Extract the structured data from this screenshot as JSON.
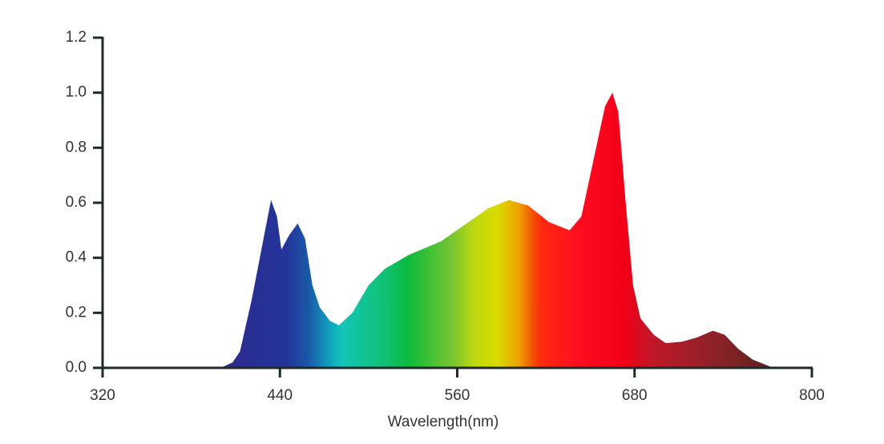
{
  "chart_data": {
    "type": "area",
    "xlabel": "Wavelength(nm)",
    "x": [
      400,
      408,
      413,
      421,
      430,
      434,
      438,
      441,
      446,
      452,
      457,
      462,
      467,
      474,
      480,
      489,
      500,
      511,
      527,
      549,
      565,
      581,
      595,
      608,
      622,
      636,
      644,
      652,
      660,
      665,
      669,
      674,
      679,
      684,
      693,
      701,
      712,
      722,
      733,
      741,
      750,
      760,
      774
    ],
    "values": [
      0,
      0.02,
      0.06,
      0.25,
      0.5,
      0.61,
      0.55,
      0.43,
      0.48,
      0.525,
      0.47,
      0.3,
      0.22,
      0.17,
      0.155,
      0.2,
      0.3,
      0.36,
      0.41,
      0.46,
      0.52,
      0.58,
      0.61,
      0.59,
      0.53,
      0.5,
      0.55,
      0.75,
      0.95,
      1.0,
      0.93,
      0.6,
      0.3,
      0.18,
      0.12,
      0.09,
      0.095,
      0.11,
      0.135,
      0.12,
      0.07,
      0.03,
      0
    ],
    "xlim": [
      320,
      800
    ],
    "xticks": [
      320,
      440,
      560,
      680,
      800
    ],
    "ylim": [
      0,
      1.2
    ],
    "yticks": [
      {
        "value": 0,
        "label": "0.0"
      },
      0.2,
      0.4,
      0.6,
      0.8,
      {
        "value": 1,
        "label": "1.0"
      },
      1.2
    ]
  }
}
